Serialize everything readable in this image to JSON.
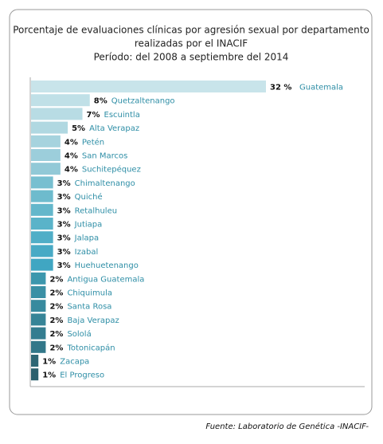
{
  "chart_data": {
    "type": "hbar",
    "title": [
      "Porcentaje de evaluaciones clínicas por agresión sexual por departamento",
      "realizadas por el INACIF",
      "Período: del 2008 a septiembre del 2014"
    ],
    "categories": [
      "Guatemala",
      "Quetzaltenango",
      "Escuintla",
      "Alta Verapaz",
      "Petén",
      "San Marcos",
      "Suchitepéquez",
      "Chimaltenango",
      "Quiché",
      "Retalhuleu",
      "Jutiapa",
      "Jalapa",
      "Izabal",
      "Huehuetenango",
      "Antigua Guatemala",
      "Chiquimula",
      "Santa Rosa",
      "Baja Verapaz",
      "Sololá",
      "Totonicapán",
      "Zacapa",
      "El Progreso"
    ],
    "values": [
      32,
      8,
      7,
      5,
      4,
      4,
      4,
      3,
      3,
      3,
      3,
      3,
      3,
      3,
      2,
      2,
      2,
      2,
      2,
      2,
      1,
      1
    ],
    "value_labels": [
      "32 %",
      "8%",
      "7%",
      "5%",
      "4%",
      "4%",
      "4%",
      "3%",
      "3%",
      "3%",
      "3%",
      "3%",
      "3%",
      "3%",
      "2%",
      "2%",
      "2%",
      "2%",
      "2%",
      "2%",
      "1%",
      "1%"
    ],
    "colors": [
      "#c8e4ea",
      "#c0e0e7",
      "#b8dce4",
      "#b0d8e1",
      "#a6d3de",
      "#9ccedb",
      "#92c9d7",
      "#77bfd0",
      "#6ebbcd",
      "#64b7cb",
      "#5ab3c9",
      "#50aec7",
      "#48aac5",
      "#40a6c2",
      "#3c97ad",
      "#3a90a5",
      "#388a9e",
      "#368497",
      "#347d90",
      "#327789",
      "#2e6674",
      "#2c606d"
    ],
    "source": "Fuente: Laboratorio de Genética -INACIF-"
  }
}
